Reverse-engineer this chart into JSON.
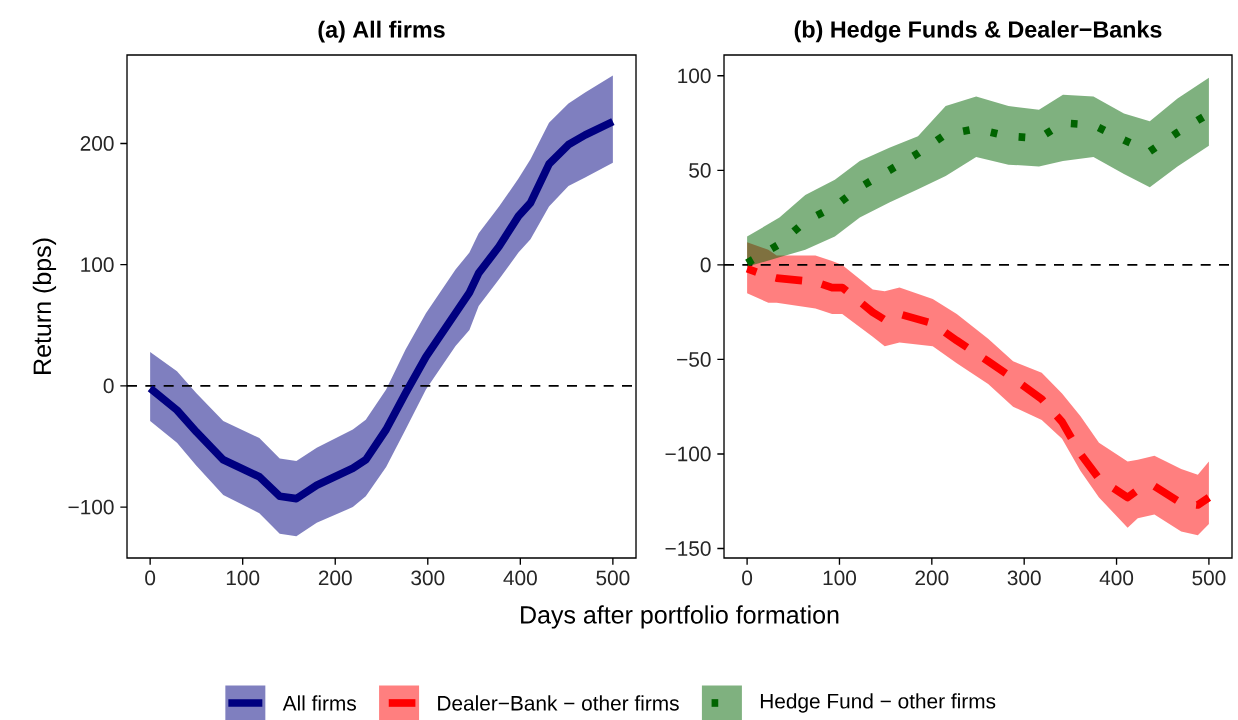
{
  "chart_data": [
    {
      "type": "line",
      "title": "(a) All firms",
      "ylabel": "Return (bps)",
      "xlabel": "Days after portfolio formation",
      "legend": "bottom",
      "xlim": [
        -25,
        525
      ],
      "ylim": [
        -142,
        273
      ],
      "xticks": [
        0,
        100,
        200,
        300,
        400,
        500
      ],
      "yticks": [
        {
          "value": -100,
          "label": "−100"
        },
        0,
        100,
        200
      ],
      "ref_lines": [
        {
          "axis": "y",
          "value": 0,
          "line_style": "dashed",
          "color": "#000000"
        }
      ],
      "series": [
        {
          "name": "All firms",
          "color": "#000080",
          "line_style": "solid",
          "x": [
            0,
            29,
            50,
            79,
            118,
            140,
            158,
            180,
            219,
            233,
            255,
            276,
            298,
            330,
            345,
            355,
            377,
            398,
            411,
            431,
            452,
            470,
            500
          ],
          "values": [
            -2,
            -20,
            -38,
            -61,
            -75,
            -91,
            -93,
            -82,
            -68,
            -61,
            -36,
            -6,
            24,
            60,
            77,
            93,
            115,
            140,
            151,
            183,
            199,
            207,
            218
          ],
          "upper": [
            28,
            12,
            -6,
            -29,
            -43,
            -60,
            -62,
            -51,
            -36,
            -28,
            -3,
            30,
            60,
            96,
            110,
            126,
            148,
            171,
            187,
            217,
            233,
            242,
            256
          ],
          "lower": [
            -29,
            -47,
            -66,
            -90,
            -105,
            -122,
            -124,
            -113,
            -100,
            -91,
            -67,
            -36,
            -3,
            33,
            46,
            66,
            88,
            110,
            121,
            148,
            165,
            172,
            184
          ]
        }
      ]
    },
    {
      "type": "line",
      "title": "(b) Hedge Funds & Dealer−Banks",
      "legend": "bottom",
      "xlim": [
        -25,
        525
      ],
      "ylim": [
        -155,
        111
      ],
      "xticks": [
        0,
        100,
        200,
        300,
        400,
        500
      ],
      "yticks": [
        {
          "value": -150,
          "label": "−150"
        },
        {
          "value": -100,
          "label": "−100"
        },
        {
          "value": -50,
          "label": "−50"
        },
        0,
        50,
        100
      ],
      "ref_lines": [
        {
          "axis": "y",
          "value": 0,
          "line_style": "dashed",
          "color": "#000000"
        }
      ],
      "series": [
        {
          "name": "Dealer−Bank − other firms",
          "color": "#ff0000",
          "line_style": "dashed",
          "x": [
            0,
            23,
            32,
            74,
            92,
            103,
            136,
            149,
            165,
            201,
            227,
            261,
            288,
            319,
            341,
            361,
            381,
            412,
            423,
            441,
            470,
            488,
            500
          ],
          "values": [
            -2,
            -6,
            -7,
            -9,
            -12,
            -12,
            -25,
            -29,
            -26,
            -31,
            -40,
            -51,
            -60,
            -71,
            -83,
            -100,
            -113,
            -123,
            -119,
            -117,
            -126,
            -127,
            -123
          ],
          "upper": [
            12,
            8,
            5,
            5,
            2,
            0,
            -13,
            -14,
            -12,
            -18,
            -26,
            -39,
            -51,
            -57,
            -68,
            -80,
            -94,
            -104,
            -103,
            -101,
            -108,
            -111,
            -104
          ],
          "lower": [
            -15,
            -20,
            -20,
            -23,
            -26,
            -26,
            -38,
            -43,
            -41,
            -43,
            -52,
            -63,
            -75,
            -82,
            -92,
            -109,
            -123,
            -139,
            -134,
            -132,
            -141,
            -143,
            -137
          ]
        },
        {
          "name": "Hedge Fund − other firms",
          "color": "#006400",
          "line_style": "dotted",
          "x": [
            0,
            35,
            63,
            95,
            122,
            154,
            185,
            215,
            248,
            283,
            316,
            342,
            375,
            408,
            436,
            466,
            500
          ],
          "values": [
            1,
            11,
            23,
            31,
            41,
            50,
            59,
            69,
            72,
            68,
            67,
            75,
            74,
            66,
            60,
            70,
            80
          ],
          "upper": [
            15,
            25,
            37,
            45,
            55,
            62,
            68,
            84,
            89,
            84,
            82,
            90,
            89,
            80,
            76,
            88,
            99
          ],
          "lower": [
            -1,
            4,
            8,
            15,
            25,
            33,
            40,
            47,
            57,
            53,
            52,
            55,
            57,
            48,
            41,
            52,
            63
          ]
        }
      ]
    }
  ]
}
